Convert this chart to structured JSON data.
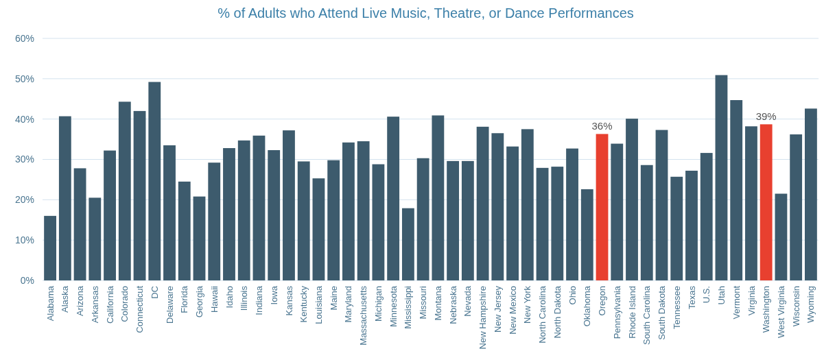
{
  "chart_data": {
    "type": "bar",
    "title": "% of Adults who Attend Live Music, Theatre, or Dance Performances",
    "categories": [
      "Alabama",
      "Alaska",
      "Arizona",
      "Arkansas",
      "California",
      "Colorado",
      "Connecticut",
      "DC",
      "Delaware",
      "Florida",
      "Georgia",
      "Hawaii",
      "Idaho",
      "Illinois",
      "Indiana",
      "Iowa",
      "Kansas",
      "Kentucky",
      "Louisiana",
      "Maine",
      "Maryland",
      "Massachusetts",
      "Michigan",
      "Minnesota",
      "Mississippi",
      "Missouri",
      "Montana",
      "Nebraska",
      "Nevada",
      "New Hampshire",
      "New Jersey",
      "New Mexico",
      "New York",
      "North Carolina",
      "North Dakota",
      "Ohio",
      "Oklahoma",
      "Oregon",
      "Pennsylvania",
      "Rhode Island",
      "South Carolina",
      "South Dakota",
      "Tennessee",
      "Texas",
      "U.S.",
      "Utah",
      "Vermont",
      "Virginia",
      "Washington",
      "West Virginia",
      "Wisconsin",
      "Wyoming"
    ],
    "values": [
      16,
      40.7,
      27.8,
      20.5,
      32.2,
      44.3,
      42,
      49.2,
      33.5,
      24.5,
      20.8,
      29.2,
      32.8,
      34.7,
      35.9,
      32.3,
      37.2,
      29.5,
      25.3,
      29.8,
      34.2,
      34.5,
      28.8,
      40.6,
      17.9,
      30.3,
      40.9,
      29.6,
      29.6,
      38.1,
      36.5,
      33.2,
      37.5,
      27.9,
      28.2,
      32.7,
      22.6,
      36.3,
      33.9,
      40.1,
      28.6,
      37.3,
      25.7,
      27.2,
      31.6,
      50.9,
      44.7,
      38.2,
      38.7,
      21.5,
      36.2,
      42.6
    ],
    "colors": [
      "#3d5b6d",
      "#3d5b6d",
      "#3d5b6d",
      "#3d5b6d",
      "#3d5b6d",
      "#3d5b6d",
      "#3d5b6d",
      "#3d5b6d",
      "#3d5b6d",
      "#3d5b6d",
      "#3d5b6d",
      "#3d5b6d",
      "#3d5b6d",
      "#3d5b6d",
      "#3d5b6d",
      "#3d5b6d",
      "#3d5b6d",
      "#3d5b6d",
      "#3d5b6d",
      "#3d5b6d",
      "#3d5b6d",
      "#3d5b6d",
      "#3d5b6d",
      "#3d5b6d",
      "#3d5b6d",
      "#3d5b6d",
      "#3d5b6d",
      "#3d5b6d",
      "#3d5b6d",
      "#3d5b6d",
      "#3d5b6d",
      "#3d5b6d",
      "#3d5b6d",
      "#3d5b6d",
      "#3d5b6d",
      "#3d5b6d",
      "#3d5b6d",
      "#e8402f",
      "#3d5b6d",
      "#3d5b6d",
      "#3d5b6d",
      "#3d5b6d",
      "#3d5b6d",
      "#3d5b6d",
      "#3d5b6d",
      "#3d5b6d",
      "#3d5b6d",
      "#3d5b6d",
      "#e8402f",
      "#3d5b6d",
      "#3d5b6d",
      "#3d5b6d"
    ],
    "value_labels": [
      null,
      null,
      null,
      null,
      null,
      null,
      null,
      null,
      null,
      null,
      null,
      null,
      null,
      null,
      null,
      null,
      null,
      null,
      null,
      null,
      null,
      null,
      null,
      null,
      null,
      null,
      null,
      null,
      null,
      null,
      null,
      null,
      null,
      null,
      null,
      null,
      null,
      "36%",
      null,
      null,
      null,
      null,
      null,
      null,
      null,
      null,
      null,
      null,
      "39%",
      null,
      null,
      null
    ],
    "ylim": [
      0,
      60
    ],
    "yticks": [
      {
        "value": 0,
        "label": "0%"
      },
      {
        "value": 10,
        "label": "10%"
      },
      {
        "value": 20,
        "label": "20%"
      },
      {
        "value": 30,
        "label": "30%"
      },
      {
        "value": 40,
        "label": "40%"
      },
      {
        "value": 50,
        "label": "50%"
      },
      {
        "value": 60,
        "label": "60%"
      }
    ],
    "grid": "y"
  }
}
